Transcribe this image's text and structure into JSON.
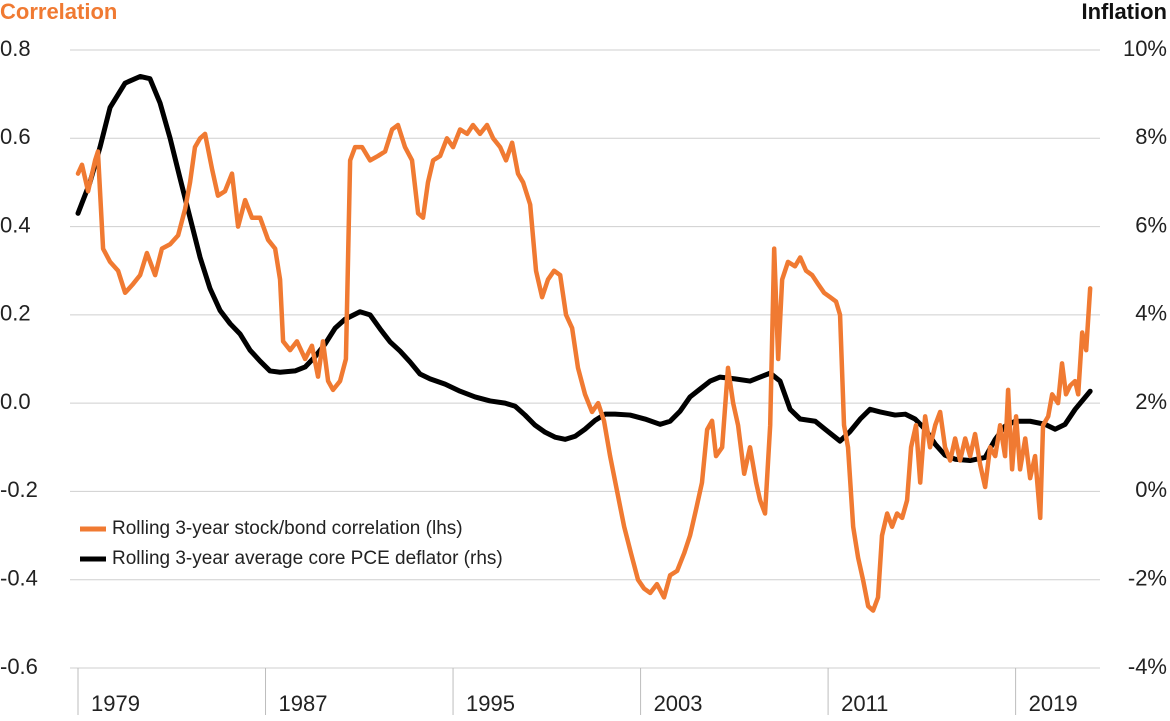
{
  "chart_data": {
    "type": "line",
    "y_label": "Correlation",
    "y2_label": "Inflation",
    "xlim": [
      1979,
      2022.6
    ],
    "xticks": [
      1979,
      1987,
      1995,
      2003,
      2011,
      2019
    ],
    "ylim": [
      -0.6,
      0.8
    ],
    "yticks": [
      -0.6,
      -0.4,
      -0.2,
      {
        "value": 0,
        "label": "0.0"
      },
      0.2,
      0.4,
      0.6,
      0.8
    ],
    "y2lim": [
      -4,
      10
    ],
    "y2ticks": [
      {
        "value": -4,
        "label": "-4%"
      },
      {
        "value": -2,
        "label": "-2%"
      },
      {
        "value": 0,
        "label": "0%"
      },
      {
        "value": 2,
        "label": "2%"
      },
      {
        "value": 4,
        "label": "4%"
      },
      {
        "value": 6,
        "label": "6%"
      },
      {
        "value": 8,
        "label": "8%"
      },
      {
        "value": 10,
        "label": "10%"
      }
    ],
    "grid": true,
    "legend": "lower-left",
    "series": [
      {
        "name": "Rolling 3-year stock/bond correlation (lhs)",
        "color": "#f07a32",
        "axis": "y",
        "x": [
          1979.0,
          1979.17,
          1979.43,
          1979.73,
          1979.85,
          1980.07,
          1980.37,
          1980.71,
          1981.01,
          1981.35,
          1981.65,
          1981.94,
          1982.29,
          1982.58,
          1982.93,
          1983.27,
          1983.57,
          1983.78,
          1983.99,
          1984.21,
          1984.42,
          1984.72,
          1984.97,
          1985.27,
          1985.57,
          1985.83,
          1986.13,
          1986.42,
          1986.77,
          1987.11,
          1987.41,
          1987.62,
          1987.75,
          1988.05,
          1988.34,
          1988.69,
          1988.98,
          1989.24,
          1989.45,
          1989.67,
          1989.88,
          1990.18,
          1990.43,
          1990.61,
          1990.82,
          1991.12,
          1991.46,
          1991.8,
          1992.1,
          1992.4,
          1992.65,
          1992.95,
          1993.25,
          1993.51,
          1993.72,
          1993.93,
          1994.15,
          1994.45,
          1994.74,
          1995.0,
          1995.3,
          1995.6,
          1995.85,
          1996.15,
          1996.45,
          1996.71,
          1997.01,
          1997.26,
          1997.52,
          1997.77,
          1997.99,
          1998.29,
          1998.54,
          1998.8,
          1999.05,
          1999.31,
          1999.57,
          1999.82,
          2000.08,
          2000.33,
          2000.63,
          2000.93,
          2001.19,
          2001.44,
          2001.7,
          2002.0,
          2002.3,
          2002.59,
          2002.89,
          2003.15,
          2003.41,
          2003.7,
          2004.0,
          2004.26,
          2004.56,
          2004.86,
          2005.11,
          2005.37,
          2005.62,
          2005.84,
          2006.05,
          2006.22,
          2006.48,
          2006.73,
          2006.95,
          2007.16,
          2007.42,
          2007.67,
          2007.93,
          2008.1,
          2008.31,
          2008.53,
          2008.7,
          2008.87,
          2009.04,
          2009.29,
          2009.59,
          2009.81,
          2010.06,
          2010.32,
          2010.57,
          2010.83,
          2011.09,
          2011.34,
          2011.51,
          2011.68,
          2011.85,
          2012.07,
          2012.28,
          2012.49,
          2012.71,
          2012.92,
          2013.13,
          2013.3,
          2013.52,
          2013.73,
          2013.94,
          2014.16,
          2014.37,
          2014.54,
          2014.75,
          2014.93,
          2015.14,
          2015.35,
          2015.57,
          2015.78,
          2015.99,
          2016.21,
          2016.42,
          2016.63,
          2016.85,
          2017.06,
          2017.27,
          2017.49,
          2017.7,
          2017.91,
          2018.13,
          2018.34,
          2018.55,
          2018.68,
          2018.85,
          2019.02,
          2019.19,
          2019.41,
          2019.62,
          2019.83,
          2020.05,
          2020.17,
          2020.39,
          2020.56,
          2020.81,
          2020.98,
          2021.15,
          2021.33,
          2021.54,
          2021.67,
          2021.84,
          2022.01,
          2022.18
        ],
        "values": [
          0.52,
          0.54,
          0.48,
          0.55,
          0.57,
          0.35,
          0.32,
          0.3,
          0.25,
          0.27,
          0.29,
          0.34,
          0.29,
          0.35,
          0.36,
          0.38,
          0.44,
          0.5,
          0.58,
          0.6,
          0.61,
          0.53,
          0.47,
          0.48,
          0.52,
          0.4,
          0.46,
          0.42,
          0.42,
          0.37,
          0.35,
          0.28,
          0.14,
          0.12,
          0.14,
          0.1,
          0.13,
          0.06,
          0.14,
          0.05,
          0.03,
          0.05,
          0.1,
          0.55,
          0.58,
          0.58,
          0.55,
          0.56,
          0.57,
          0.62,
          0.63,
          0.58,
          0.55,
          0.43,
          0.42,
          0.5,
          0.55,
          0.56,
          0.6,
          0.58,
          0.62,
          0.61,
          0.63,
          0.61,
          0.63,
          0.6,
          0.58,
          0.55,
          0.59,
          0.52,
          0.5,
          0.45,
          0.3,
          0.24,
          0.28,
          0.3,
          0.29,
          0.2,
          0.17,
          0.08,
          0.02,
          -0.02,
          0.0,
          -0.04,
          -0.12,
          -0.2,
          -0.28,
          -0.34,
          -0.4,
          -0.42,
          -0.43,
          -0.41,
          -0.44,
          -0.39,
          -0.38,
          -0.34,
          -0.3,
          -0.24,
          -0.18,
          -0.06,
          -0.04,
          -0.12,
          -0.1,
          0.08,
          0.0,
          -0.05,
          -0.16,
          -0.1,
          -0.18,
          -0.22,
          -0.25,
          -0.05,
          0.35,
          0.1,
          0.28,
          0.32,
          0.31,
          0.33,
          0.3,
          0.29,
          0.27,
          0.25,
          0.24,
          0.23,
          0.2,
          -0.05,
          -0.1,
          -0.28,
          -0.35,
          -0.4,
          -0.46,
          -0.47,
          -0.44,
          -0.3,
          -0.25,
          -0.28,
          -0.25,
          -0.26,
          -0.22,
          -0.1,
          -0.05,
          -0.18,
          -0.03,
          -0.1,
          -0.05,
          -0.02,
          -0.1,
          -0.13,
          -0.08,
          -0.13,
          -0.08,
          -0.12,
          -0.07,
          -0.14,
          -0.19,
          -0.1,
          -0.12,
          -0.05,
          -0.12,
          0.03,
          -0.15,
          -0.03,
          -0.15,
          -0.08,
          -0.17,
          -0.12,
          -0.26,
          -0.05,
          -0.03,
          0.02,
          0.0,
          0.09,
          0.02,
          0.04,
          0.05,
          0.02,
          0.16,
          0.12,
          0.26
        ]
      },
      {
        "name": "Rolling 3-year average core PCE deflator (rhs)",
        "color": "#000000",
        "axis": "y2",
        "x": [
          1979.0,
          1979.51,
          1979.94,
          1980.37,
          1981.01,
          1981.65,
          1982.07,
          1982.5,
          1982.93,
          1983.35,
          1983.78,
          1984.21,
          1984.63,
          1985.06,
          1985.49,
          1985.91,
          1986.34,
          1986.77,
          1987.19,
          1987.62,
          1988.26,
          1988.69,
          1989.11,
          1989.54,
          1989.97,
          1990.39,
          1991.03,
          1991.46,
          1991.89,
          1992.31,
          1992.74,
          1993.17,
          1993.59,
          1994.02,
          1994.66,
          1995.3,
          1995.94,
          1996.58,
          1997.22,
          1997.65,
          1998.07,
          1998.5,
          1998.93,
          1999.35,
          1999.78,
          2000.21,
          2000.63,
          2001.06,
          2001.49,
          2001.91,
          2002.55,
          2003.19,
          2003.83,
          2004.26,
          2004.69,
          2005.11,
          2005.54,
          2005.97,
          2006.39,
          2007.03,
          2007.67,
          2008.1,
          2008.53,
          2008.95,
          2009.38,
          2009.81,
          2010.45,
          2010.87,
          2011.51,
          2011.94,
          2012.37,
          2012.79,
          2013.22,
          2013.86,
          2014.29,
          2014.71,
          2015.14,
          2015.57,
          2015.99,
          2016.42,
          2017.06,
          2017.7,
          2018.13,
          2018.55,
          2018.98,
          2019.62,
          2020.26,
          2020.69,
          2021.11,
          2021.54,
          2022.18
        ],
        "values": [
          6.3,
          7.0,
          7.8,
          8.7,
          9.25,
          9.4,
          9.35,
          8.8,
          8.0,
          7.1,
          6.2,
          5.3,
          4.6,
          4.1,
          3.8,
          3.57,
          3.2,
          2.95,
          2.73,
          2.7,
          2.73,
          2.82,
          3.05,
          3.34,
          3.7,
          3.9,
          4.07,
          4.0,
          3.68,
          3.39,
          3.18,
          2.93,
          2.66,
          2.55,
          2.43,
          2.27,
          2.14,
          2.05,
          2.0,
          1.93,
          1.73,
          1.5,
          1.34,
          1.23,
          1.18,
          1.25,
          1.41,
          1.61,
          1.75,
          1.75,
          1.73,
          1.64,
          1.52,
          1.59,
          1.82,
          2.14,
          2.32,
          2.5,
          2.59,
          2.55,
          2.5,
          2.59,
          2.68,
          2.5,
          1.86,
          1.64,
          1.59,
          1.41,
          1.14,
          1.36,
          1.64,
          1.86,
          1.8,
          1.73,
          1.75,
          1.64,
          1.41,
          1.07,
          0.82,
          0.73,
          0.7,
          0.77,
          1.18,
          1.48,
          1.59,
          1.59,
          1.52,
          1.41,
          1.52,
          1.86,
          2.27
        ]
      }
    ]
  }
}
